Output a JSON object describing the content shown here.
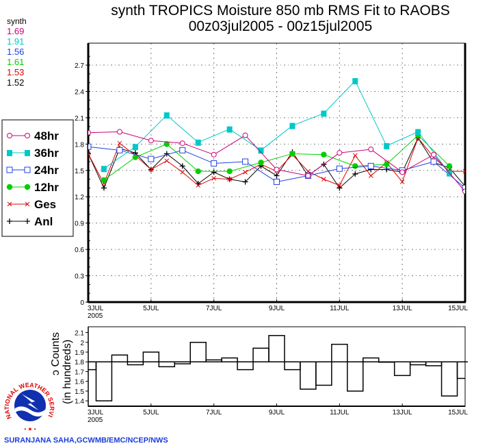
{
  "chart_data": [
    {
      "type": "line",
      "title": "synth TROPICS Moisture 850 mb RMS Fit to RAOBS",
      "subtitle": "00z03jul2005 - 00z15jul2005",
      "xlabel": "",
      "ylabel": "",
      "ylim": [
        0,
        2.95
      ],
      "xlim_days": [
        0,
        12
      ],
      "yticks": [
        "0",
        "0.3",
        "0.6",
        "0.9",
        "1.2",
        "1.5",
        "1.8",
        "2.1",
        "2.4",
        "2.7"
      ],
      "ytick_values": [
        0,
        0.3,
        0.6,
        0.9,
        1.2,
        1.5,
        1.8,
        2.1,
        2.4,
        2.7
      ],
      "xticks": [
        "3JUL",
        "5JUL",
        "7JUL",
        "9JUL",
        "11JUL",
        "13JUL",
        "15JUL"
      ],
      "xtick_days": [
        0,
        2,
        4,
        6,
        8,
        10,
        12
      ],
      "xtick_year": "2005",
      "grid": true,
      "legend_position": "left-outside",
      "stats_header": "synth",
      "series": [
        {
          "name": "48hr",
          "color": "#cc0077",
          "marker": "open-circle",
          "stat": "1.69",
          "x_days": [
            0,
            1,
            2,
            3,
            4,
            5,
            6,
            7,
            8,
            9,
            10,
            11,
            12
          ],
          "values": [
            1.93,
            1.94,
            1.84,
            1.81,
            1.68,
            1.9,
            1.51,
            1.44,
            1.7,
            1.74,
            1.48,
            1.68,
            1.26
          ]
        },
        {
          "name": "36hr",
          "color": "#00c8c8",
          "marker": "filled-square",
          "stat": "1.91",
          "x_days": [
            0.5,
            1.5,
            2.5,
            3.5,
            4.5,
            5.5,
            6.5,
            7.5,
            8.5,
            9.5,
            10.5,
            11.5
          ],
          "values": [
            1.52,
            1.77,
            2.13,
            1.82,
            1.97,
            1.73,
            2.01,
            2.15,
            2.52,
            1.78,
            1.94,
            1.47
          ]
        },
        {
          "name": "24hr",
          "color": "#2040e0",
          "marker": "open-square",
          "stat": "1.56",
          "x_days": [
            0,
            1,
            2,
            3,
            4,
            5,
            6,
            7,
            8,
            9,
            10,
            11,
            12
          ],
          "values": [
            1.77,
            1.73,
            1.63,
            1.73,
            1.58,
            1.6,
            1.37,
            1.44,
            1.52,
            1.55,
            1.5,
            1.6,
            1.3
          ]
        },
        {
          "name": "12hr",
          "color": "#00d000",
          "marker": "filled-circle",
          "stat": "1.61",
          "x_days": [
            0.5,
            1.5,
            2.5,
            3.5,
            4.5,
            5.5,
            6.5,
            7.5,
            8.5,
            9.5,
            10.5,
            11.5
          ],
          "values": [
            1.39,
            1.65,
            1.8,
            1.49,
            1.49,
            1.59,
            1.69,
            1.68,
            1.55,
            1.57,
            1.9,
            1.55
          ]
        },
        {
          "name": "Ges",
          "color": "#e00000",
          "marker": "x",
          "stat": "1.53",
          "x_days": [
            0,
            0.5,
            1,
            1.5,
            2,
            2.5,
            3,
            3.5,
            4,
            4.5,
            5,
            5.5,
            6,
            6.5,
            7,
            7.5,
            8,
            8.5,
            9,
            9.5,
            10,
            10.5,
            11,
            11.5,
            12
          ],
          "values": [
            1.69,
            1.35,
            1.81,
            1.67,
            1.51,
            1.61,
            1.48,
            1.33,
            1.41,
            1.4,
            1.48,
            1.57,
            1.49,
            1.68,
            1.49,
            1.4,
            1.33,
            1.67,
            1.44,
            1.59,
            1.37,
            1.87,
            1.65,
            1.49,
            1.49
          ]
        },
        {
          "name": "Anl",
          "color": "#000000",
          "marker": "plus",
          "stat": "1.52",
          "x_days": [
            0,
            0.5,
            1,
            1.5,
            2,
            2.5,
            3,
            3.5,
            4,
            4.5,
            5,
            5.5,
            6,
            6.5,
            7,
            7.5,
            8,
            8.5,
            9,
            9.5,
            10,
            10.5,
            11,
            11.5,
            12
          ],
          "values": [
            1.69,
            1.3,
            1.75,
            1.7,
            1.51,
            1.69,
            1.55,
            1.35,
            1.48,
            1.4,
            1.37,
            1.55,
            1.44,
            1.71,
            1.44,
            1.57,
            1.3,
            1.46,
            1.51,
            1.51,
            1.48,
            1.87,
            1.59,
            1.53,
            1.32
          ]
        }
      ]
    },
    {
      "type": "bar",
      "title": "",
      "ylabel": "Counts",
      "ylabel_clip": "ɔ",
      "ylabel2": "(in hundreds)",
      "ylim": [
        1.345,
        2.16
      ],
      "baseline": 1.8,
      "yticks": [
        "1.4",
        "1.5",
        "1.6",
        "1.7",
        "1.8",
        "1.9",
        "2",
        "2.1"
      ],
      "ytick_values": [
        1.4,
        1.5,
        1.6,
        1.7,
        1.8,
        1.9,
        2.0,
        2.1
      ],
      "xticks": [
        "3JUL",
        "5JUL",
        "7JUL",
        "9JUL",
        "11JUL",
        "13JUL",
        "15JUL"
      ],
      "xtick_days": [
        0,
        2,
        4,
        6,
        8,
        10,
        12
      ],
      "xtick_year": "2005",
      "x_days": [
        0,
        0.5,
        1,
        1.5,
        2,
        2.5,
        3,
        3.5,
        4,
        4.5,
        5,
        5.5,
        6,
        6.5,
        7,
        7.5,
        8,
        8.5,
        9,
        9.5,
        10,
        10.5,
        11,
        11.5,
        12
      ],
      "values": [
        1.72,
        1.4,
        1.87,
        1.77,
        1.9,
        1.75,
        1.78,
        2.0,
        1.82,
        1.84,
        1.72,
        1.94,
        2.07,
        1.72,
        1.52,
        1.56,
        1.98,
        1.5,
        1.84,
        1.8,
        1.66,
        1.77,
        1.76,
        1.45,
        1.63
      ]
    }
  ],
  "credit": "SURANJANA SAHA,GCWMB/EMC/NCEP/NWS",
  "logo": {
    "text_top": "NATIONAL WEATHER",
    "text_right": "SERVICE",
    "colors": {
      "ring": "#e00000",
      "globe": "#1030b0"
    }
  }
}
